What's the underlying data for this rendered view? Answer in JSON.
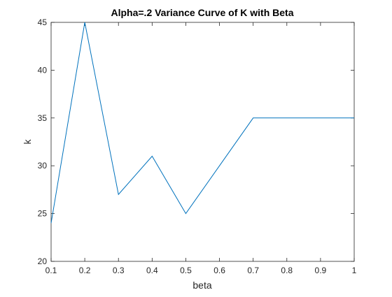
{
  "chart_data": {
    "type": "line",
    "title": "Alpha=.2 Variance Curve of K with Beta",
    "xlabel": "beta",
    "ylabel": "k",
    "xlim": [
      0.1,
      1
    ],
    "ylim": [
      20,
      45
    ],
    "xticks": [
      0.1,
      0.2,
      0.3,
      0.4,
      0.5,
      0.6,
      0.7,
      0.8,
      0.9,
      1
    ],
    "xtick_labels": [
      "0.1",
      "0.2",
      "0.3",
      "0.4",
      "0.5",
      "0.6",
      "0.7",
      "0.8",
      "0.9",
      "1"
    ],
    "yticks": [
      20,
      25,
      30,
      35,
      40,
      45
    ],
    "ytick_labels": [
      "20",
      "25",
      "30",
      "35",
      "40",
      "45"
    ],
    "grid": false,
    "series": [
      {
        "x": [
          0.1,
          0.2,
          0.3,
          0.4,
          0.5,
          0.6,
          0.7,
          0.8,
          0.9,
          1.0
        ],
        "y": [
          24,
          45,
          27,
          31,
          25,
          30,
          35,
          35,
          35,
          35
        ],
        "color": "#0072BD"
      }
    ]
  }
}
